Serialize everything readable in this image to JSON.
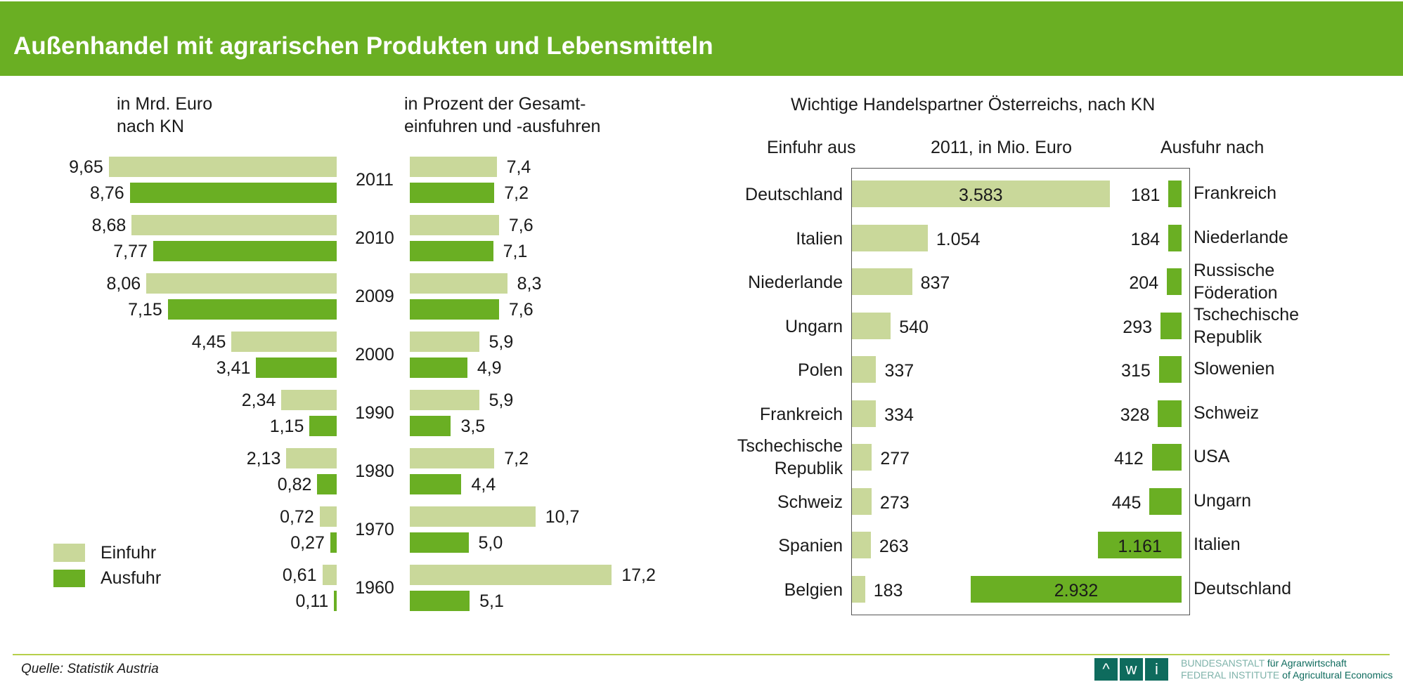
{
  "title": "Außenhandel mit agrarischen Produkten und Lebensmitteln",
  "colors": {
    "einfuhr": "#c9d89a",
    "ausfuhr": "#6aaf23",
    "header": "#6aaf23"
  },
  "legend": {
    "einfuhr": "Einfuhr",
    "ausfuhr": "Ausfuhr"
  },
  "footer": {
    "source": "Quelle: Statistik Austria",
    "logo_letters": [
      "^",
      "w",
      "i"
    ],
    "logo_line1a": "BUNDESANSTALT",
    "logo_line1b": "für Agrarwirtschaft",
    "logo_line2a": "FEDERAL INSTITUTE",
    "logo_line2b": "of Agricultural Economics"
  },
  "chart_data": [
    {
      "type": "bar",
      "title": "in Mrd. Euro\nnach KN",
      "categories": [
        "2011",
        "2010",
        "2009",
        "2000",
        "1990",
        "1980",
        "1970",
        "1960"
      ],
      "series": [
        {
          "name": "Einfuhr",
          "values": [
            9.65,
            8.68,
            8.06,
            4.45,
            2.34,
            2.13,
            0.72,
            0.61
          ],
          "labels": [
            "9,65",
            "8,68",
            "8,06",
            "4,45",
            "2,34",
            "2,13",
            "0,72",
            "0,61"
          ]
        },
        {
          "name": "Ausfuhr",
          "values": [
            8.76,
            7.77,
            7.15,
            3.41,
            1.15,
            0.82,
            0.27,
            0.11
          ],
          "labels": [
            "8,76",
            "7,77",
            "7,15",
            "3,41",
            "1,15",
            "0,82",
            "0,27",
            "0,11"
          ]
        }
      ]
    },
    {
      "type": "bar",
      "title": "in Prozent der Gesamt-\neinfuhren und -ausfuhren",
      "categories": [
        "2011",
        "2010",
        "2009",
        "2000",
        "1990",
        "1980",
        "1970",
        "1960"
      ],
      "series": [
        {
          "name": "Einfuhr",
          "values": [
            7.4,
            7.6,
            8.3,
            5.9,
            5.9,
            7.2,
            10.7,
            17.2
          ],
          "labels": [
            "7,4",
            "7,6",
            "8,3",
            "5,9",
            "5,9",
            "7,2",
            "10,7",
            "17,2"
          ]
        },
        {
          "name": "Ausfuhr",
          "values": [
            7.2,
            7.1,
            7.6,
            4.9,
            3.5,
            4.4,
            5.0,
            5.1
          ],
          "labels": [
            "7,2",
            "7,1",
            "7,6",
            "4,9",
            "3,5",
            "4,4",
            "5,0",
            "5,1"
          ]
        }
      ]
    },
    {
      "type": "bar",
      "title": "Wichtige Handelspartner Österreichs, nach KN",
      "subtitle": "2011, in Mio. Euro",
      "left_heading": "Einfuhr aus",
      "right_heading": "Ausfuhr nach",
      "einfuhr": {
        "countries": [
          "Deutschland",
          "Italien",
          "Niederlande",
          "Ungarn",
          "Polen",
          "Frankreich",
          "Tschechische\nRepublik",
          "Schweiz",
          "Spanien",
          "Belgien"
        ],
        "values": [
          3583,
          1054,
          837,
          540,
          337,
          334,
          277,
          273,
          263,
          183
        ],
        "labels": [
          "3.583",
          "1.054",
          "837",
          "540",
          "337",
          "334",
          "277",
          "273",
          "263",
          "183"
        ]
      },
      "ausfuhr": {
        "countries": [
          "Frankreich",
          "Niederlande",
          "Russische\nFöderation",
          "Tschechische\nRepublik",
          "Slowenien",
          "Schweiz",
          "USA",
          "Ungarn",
          "Italien",
          "Deutschland"
        ],
        "values": [
          181,
          184,
          204,
          293,
          315,
          328,
          412,
          445,
          1161,
          2932
        ],
        "labels": [
          "181",
          "184",
          "204",
          "293",
          "315",
          "328",
          "412",
          "445",
          "1.161",
          "2.932"
        ]
      }
    }
  ]
}
